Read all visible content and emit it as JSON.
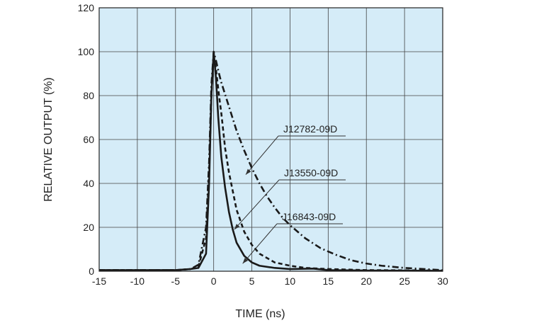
{
  "chart_data": {
    "type": "line",
    "xlabel": "TIME (ns)",
    "ylabel": "RELATIVE OUTPUT (%)",
    "xlim": [
      -15,
      30
    ],
    "ylim": [
      0,
      120
    ],
    "x_ticks": [
      -15,
      -10,
      -5,
      0,
      5,
      10,
      15,
      20,
      25,
      30
    ],
    "y_ticks": [
      0,
      20,
      40,
      60,
      80,
      100,
      120
    ],
    "grid": true,
    "colors": {
      "plot_background": "#d5ecf8",
      "grid": "#444444",
      "curves": "#1a1a1a",
      "frame": "#222222"
    },
    "series": [
      {
        "name": "J12782-09D",
        "line_style": "dash-dot",
        "x": [
          -15,
          -5,
          -3,
          -2,
          -1,
          -0.6,
          -0.3,
          0,
          0.3,
          0.7,
          1,
          2,
          3,
          4,
          5,
          6,
          7,
          8,
          9,
          10,
          12,
          14,
          16,
          18,
          20,
          22,
          25,
          30
        ],
        "y": [
          0.5,
          0.5,
          1,
          3,
          20,
          50,
          85,
          100,
          96,
          90,
          86,
          75,
          64,
          55,
          47,
          40,
          34,
          29,
          24.5,
          21,
          15,
          10.5,
          7.5,
          5,
          3.5,
          2.5,
          1.5,
          0.5
        ]
      },
      {
        "name": "J13550-09D",
        "line_style": "dashed",
        "x": [
          -15,
          -5,
          -3,
          -2,
          -1,
          -0.6,
          -0.3,
          0,
          0.3,
          0.7,
          1,
          1.5,
          2,
          3,
          4,
          5,
          6,
          8,
          10,
          12,
          15,
          20,
          30
        ],
        "y": [
          0.5,
          0.5,
          1,
          2,
          15,
          45,
          80,
          98,
          92,
          80,
          72,
          56,
          45,
          28,
          18,
          12,
          8,
          4,
          2.5,
          1.5,
          1,
          0.5,
          0.3
        ]
      },
      {
        "name": "J16843-09D",
        "line_style": "solid",
        "x": [
          -15,
          -5,
          -3,
          -2,
          -1,
          -0.6,
          -0.3,
          0,
          0.3,
          0.6,
          1,
          1.5,
          2,
          2.5,
          3,
          4,
          5,
          6,
          8,
          10,
          13,
          15,
          20,
          30
        ],
        "y": [
          0.5,
          0.5,
          1,
          1.5,
          8,
          40,
          80,
          100,
          88,
          70,
          52,
          38,
          27,
          19,
          13,
          7,
          4,
          2.5,
          1.5,
          1,
          1.2,
          0.5,
          0.3,
          0.2
        ]
      }
    ],
    "annotations": [
      {
        "text": "J12782-09D",
        "points_to": {
          "x": 4.2,
          "y": 44
        }
      },
      {
        "text": "J13550-09D",
        "points_to": {
          "x": 2.7,
          "y": 19
        }
      },
      {
        "text": "J16843-09D",
        "points_to": {
          "x": 3.8,
          "y": 3.5
        }
      }
    ]
  }
}
